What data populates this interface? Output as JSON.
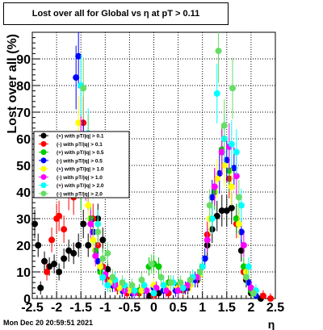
{
  "window": {
    "title": "Lost over all for Global vs   η at pT > 0.11",
    "timestamp": "Mon Dec 20 20:59:51 2021"
  },
  "chart_data": {
    "type": "scatter",
    "title": "Lost over all for Global vs   η at pT > 0.11",
    "xlabel": "η",
    "ylabel": "Lost over all (%)",
    "xlim": [
      -2.5,
      2.5
    ],
    "ylim": [
      0,
      100
    ],
    "x_ticks": [
      {
        "v": -2.5,
        "label": "-2.5"
      },
      {
        "v": -2,
        "label": "-2"
      },
      {
        "v": -1.5,
        "label": "-1.5"
      },
      {
        "v": -1,
        "label": "-1"
      },
      {
        "v": -0.5,
        "label": "-0.5"
      },
      {
        "v": 0,
        "label": "0"
      },
      {
        "v": 0.5,
        "label": "0.5"
      },
      {
        "v": 1,
        "label": "1"
      },
      {
        "v": 1.5,
        "label": "1.5"
      },
      {
        "v": 2,
        "label": "2"
      },
      {
        "v": 2.5,
        "label": "2.5"
      }
    ],
    "y_ticks": [
      {
        "v": 0,
        "label": "0"
      },
      {
        "v": 10,
        "label": "10"
      },
      {
        "v": 20,
        "label": "20"
      },
      {
        "v": 30,
        "label": "30"
      },
      {
        "v": 40,
        "label": "40"
      },
      {
        "v": 50,
        "label": "50"
      },
      {
        "v": 60,
        "label": "60"
      },
      {
        "v": 70,
        "label": "70"
      },
      {
        "v": 80,
        "label": "80"
      },
      {
        "v": 90,
        "label": "90"
      }
    ],
    "grid": true,
    "legend_position": "left-middle",
    "series": [
      {
        "name": "(+) with pT/|q| > 0.1",
        "color": "#000000",
        "points": [
          [
            -2.45,
            28
          ],
          [
            -2.38,
            20
          ],
          [
            -2.33,
            4
          ],
          [
            -2.25,
            14
          ],
          [
            -2.15,
            12
          ],
          [
            -2.05,
            13
          ],
          [
            -1.95,
            10
          ],
          [
            -1.85,
            15
          ],
          [
            -1.75,
            18
          ],
          [
            -1.65,
            17
          ],
          [
            -1.55,
            20
          ],
          [
            -1.45,
            28
          ],
          [
            -1.35,
            20
          ],
          [
            -1.25,
            45
          ],
          [
            -1.15,
            30
          ],
          [
            -1.05,
            22
          ],
          [
            -0.95,
            11
          ],
          [
            -0.85,
            6
          ],
          [
            -0.75,
            4
          ],
          [
            -0.65,
            3
          ],
          [
            -0.55,
            3
          ],
          [
            -0.45,
            2
          ],
          [
            -0.3,
            2
          ],
          [
            -0.1,
            1
          ],
          [
            0.1,
            2
          ],
          [
            0.3,
            2
          ],
          [
            0.5,
            3
          ],
          [
            0.7,
            4
          ],
          [
            0.9,
            7
          ],
          [
            1.0,
            12
          ],
          [
            1.1,
            20
          ],
          [
            1.2,
            26
          ],
          [
            1.3,
            31
          ],
          [
            1.4,
            33
          ],
          [
            1.5,
            33
          ],
          [
            1.6,
            34
          ],
          [
            1.7,
            30
          ],
          [
            1.8,
            18
          ],
          [
            1.9,
            7
          ],
          [
            2.0,
            2
          ],
          [
            2.2,
            0
          ]
        ]
      },
      {
        "name": "(-) with pT/|q| > 0.1",
        "color": "#ff0000",
        "points": [
          [
            -2.2,
            10
          ],
          [
            -2.1,
            22
          ],
          [
            -2.0,
            30
          ],
          [
            -1.95,
            31
          ],
          [
            -1.85,
            26
          ],
          [
            -1.75,
            40
          ],
          [
            -1.65,
            38
          ],
          [
            -1.55,
            45
          ],
          [
            -1.45,
            66
          ],
          [
            -1.35,
            40
          ],
          [
            -1.25,
            30
          ],
          [
            -1.15,
            20
          ],
          [
            -1.05,
            12
          ],
          [
            -0.95,
            7
          ],
          [
            -0.75,
            4
          ],
          [
            -0.55,
            2
          ],
          [
            -0.3,
            2
          ],
          [
            0.0,
            1
          ],
          [
            0.3,
            2
          ],
          [
            0.6,
            3
          ],
          [
            0.9,
            8
          ],
          [
            1.1,
            24
          ],
          [
            1.25,
            42
          ],
          [
            1.4,
            55
          ],
          [
            1.55,
            45
          ],
          [
            1.7,
            28
          ],
          [
            1.85,
            10
          ],
          [
            2.0,
            3
          ],
          [
            2.25,
            1
          ],
          [
            2.4,
            0
          ]
        ]
      },
      {
        "name": "(+) with pT/|q| > 0.5",
        "color": "#00cc00",
        "points": [
          [
            -1.65,
            45
          ],
          [
            -1.5,
            40
          ],
          [
            -1.4,
            50
          ],
          [
            -1.3,
            30
          ],
          [
            -1.2,
            18
          ],
          [
            -1.1,
            10
          ],
          [
            -0.9,
            5
          ],
          [
            -0.7,
            4
          ],
          [
            -0.5,
            3
          ],
          [
            -0.3,
            3
          ],
          [
            -0.1,
            12
          ],
          [
            0.0,
            13
          ],
          [
            0.1,
            12
          ],
          [
            0.3,
            6
          ],
          [
            0.5,
            5
          ],
          [
            0.7,
            5
          ],
          [
            0.9,
            8
          ],
          [
            1.1,
            22
          ],
          [
            1.25,
            40
          ],
          [
            1.4,
            56
          ],
          [
            1.55,
            48
          ],
          [
            1.7,
            30
          ],
          [
            1.85,
            12
          ],
          [
            2.0,
            3
          ]
        ]
      },
      {
        "name": "(-) with pT/|q| > 0.5",
        "color": "#0000ff",
        "points": [
          [
            -1.6,
            83
          ],
          [
            -1.55,
            91
          ],
          [
            -1.45,
            58
          ],
          [
            -1.35,
            40
          ],
          [
            -1.25,
            25
          ],
          [
            -1.15,
            14
          ],
          [
            -1.05,
            8
          ],
          [
            -0.85,
            5
          ],
          [
            -0.65,
            3
          ],
          [
            -0.45,
            2
          ],
          [
            -0.2,
            3
          ],
          [
            0.0,
            4
          ],
          [
            0.2,
            3
          ],
          [
            0.45,
            3
          ],
          [
            0.65,
            4
          ],
          [
            0.85,
            7
          ],
          [
            1.05,
            15
          ],
          [
            1.2,
            38
          ],
          [
            1.35,
            47
          ],
          [
            1.5,
            52
          ],
          [
            1.65,
            49
          ],
          [
            1.8,
            25
          ],
          [
            1.95,
            6
          ],
          [
            2.1,
            1
          ]
        ]
      },
      {
        "name": "(+) with pT/|q| > 1.0",
        "color": "#ffff00",
        "points": [
          [
            -1.55,
            66
          ],
          [
            -1.45,
            50
          ],
          [
            -1.35,
            35
          ],
          [
            -1.25,
            22
          ],
          [
            -1.1,
            12
          ],
          [
            -0.9,
            6
          ],
          [
            -0.7,
            4
          ],
          [
            -0.5,
            3
          ],
          [
            -0.25,
            3
          ],
          [
            0.0,
            5
          ],
          [
            0.25,
            4
          ],
          [
            0.5,
            4
          ],
          [
            0.75,
            5
          ],
          [
            0.95,
            9
          ],
          [
            1.15,
            30
          ],
          [
            1.3,
            45
          ],
          [
            1.45,
            50
          ],
          [
            1.6,
            42
          ],
          [
            1.75,
            28
          ],
          [
            1.9,
            10
          ],
          [
            2.05,
            2
          ]
        ]
      },
      {
        "name": "(-) with pT/|q| > 1.0",
        "color": "#ff00ff",
        "points": [
          [
            -1.5,
            60
          ],
          [
            -1.4,
            44
          ],
          [
            -1.3,
            28
          ],
          [
            -1.2,
            16
          ],
          [
            -1.0,
            9
          ],
          [
            -0.8,
            5
          ],
          [
            -0.6,
            3
          ],
          [
            -0.4,
            2
          ],
          [
            -0.15,
            3
          ],
          [
            0.05,
            4
          ],
          [
            0.25,
            3
          ],
          [
            0.5,
            3
          ],
          [
            0.7,
            5
          ],
          [
            0.9,
            8
          ],
          [
            1.1,
            22
          ],
          [
            1.25,
            42
          ],
          [
            1.4,
            55
          ],
          [
            1.55,
            57
          ],
          [
            1.7,
            46
          ],
          [
            1.85,
            20
          ],
          [
            2.0,
            4
          ]
        ]
      },
      {
        "name": "(+) with pT/|q| > 2.0",
        "color": "#00ffff",
        "points": [
          [
            -1.5,
            80
          ],
          [
            -1.35,
            62
          ],
          [
            -1.25,
            45
          ],
          [
            -1.15,
            28
          ],
          [
            -1.05,
            8
          ],
          [
            -0.95,
            5
          ],
          [
            -0.8,
            7
          ],
          [
            -0.6,
            5
          ],
          [
            -0.4,
            3
          ],
          [
            -0.2,
            5
          ],
          [
            0.0,
            2
          ],
          [
            0.2,
            5
          ],
          [
            0.4,
            6
          ],
          [
            0.6,
            4
          ],
          [
            0.8,
            8
          ],
          [
            1.0,
            12
          ],
          [
            1.2,
            30
          ],
          [
            1.3,
            77
          ],
          [
            1.45,
            60
          ],
          [
            1.6,
            58
          ],
          [
            1.7,
            55
          ],
          [
            1.8,
            35
          ],
          [
            1.95,
            12
          ],
          [
            2.1,
            3
          ]
        ]
      },
      {
        "name": "(-) with pT/|q| > 2.0",
        "color": "#66dd66",
        "points": [
          [
            -1.45,
            79
          ],
          [
            -1.35,
            60
          ],
          [
            -1.25,
            50
          ],
          [
            -1.15,
            25
          ],
          [
            -1.05,
            15
          ],
          [
            -0.95,
            17
          ],
          [
            -0.85,
            8
          ],
          [
            -0.65,
            6
          ],
          [
            -0.45,
            5
          ],
          [
            -0.25,
            7
          ],
          [
            -0.05,
            13
          ],
          [
            0.15,
            8
          ],
          [
            0.35,
            6
          ],
          [
            0.55,
            6
          ],
          [
            0.75,
            7
          ],
          [
            0.95,
            10
          ],
          [
            1.15,
            35
          ],
          [
            1.33,
            93
          ],
          [
            1.45,
            65
          ],
          [
            1.62,
            79
          ],
          [
            1.75,
            38
          ],
          [
            1.9,
            8
          ],
          [
            2.05,
            2
          ]
        ]
      }
    ]
  }
}
